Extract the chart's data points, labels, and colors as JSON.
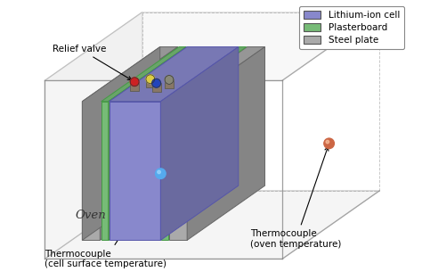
{
  "fig_width": 4.74,
  "fig_height": 3.14,
  "dpi": 100,
  "bg_color": "#ffffff",
  "legend_items": [
    {
      "label": "Lithium-ion cell",
      "color": "#8888cc"
    },
    {
      "label": "Plasterboard",
      "color": "#77bb77"
    },
    {
      "label": "Steel plate",
      "color": "#aaaaaa"
    }
  ],
  "oven_color": "#cccccc",
  "oven_edge": "#888888",
  "cell_color": "#8888cc",
  "cell_edge": "#5555aa",
  "plaster_color": "#77bb77",
  "plaster_edge": "#449944",
  "steel_color": "#aaaaaa",
  "steel_edge": "#666666",
  "tc_cell_color": "#55aaee",
  "tc_oven_color": "#cc6644",
  "valve_red_color": "#cc2222",
  "valve_yellow_color": "#ddcc44",
  "valve_blue_color": "#2244bb",
  "valve_gray_color": "#888877",
  "annotation_fontsize": 7.5,
  "oven_label": "Oven",
  "relief_label": "Relief valve",
  "tc_cell_label": "Thermocouple\n(cell surface temperature)",
  "tc_oven_label": "Thermocouple\n(oven temperature)"
}
